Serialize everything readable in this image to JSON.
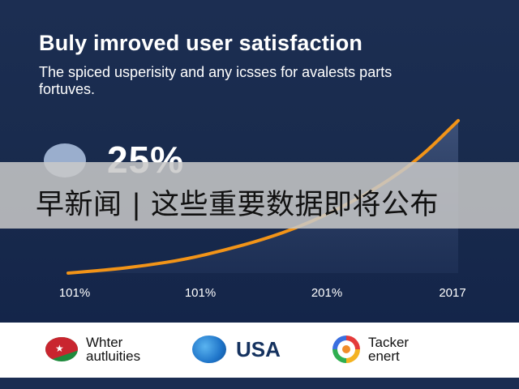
{
  "header": {
    "title": "Buly imroved user satisfaction",
    "subtitle": "The spiced usperisity and any icsses for avalests parts fortuves."
  },
  "highlight": {
    "value": "25%"
  },
  "banner": {
    "text": "早新闻 | 这些重要数据即将公布"
  },
  "chart_data": {
    "type": "line",
    "title": "",
    "xlabel": "",
    "ylabel": "",
    "x_tick_labels": [
      "101%",
      "101%",
      "201%",
      "2017"
    ],
    "series": [
      {
        "x": [
          0,
          0.1,
          0.2,
          0.3,
          0.4,
          0.5,
          0.6,
          0.7,
          0.8,
          0.9,
          1.0
        ],
        "y": [
          0.0,
          0.02,
          0.05,
          0.09,
          0.15,
          0.22,
          0.31,
          0.43,
          0.57,
          0.75,
          1.0
        ]
      }
    ],
    "xlim": [
      0,
      1
    ],
    "ylim": [
      0,
      1.1
    ],
    "line_color": "#f29418",
    "area_fill": true,
    "grid": false
  },
  "footer": {
    "logos": [
      {
        "icon": "flag-icon",
        "name": "Whter\nautluities"
      },
      {
        "icon": "globe-icon",
        "name": "USA"
      },
      {
        "icon": "ring-icon",
        "name": "Tacker\nenert"
      }
    ]
  },
  "colors": {
    "panel_bg": "#1b2d52",
    "line": "#f29418",
    "banner_bg": "#c8c8c8"
  }
}
